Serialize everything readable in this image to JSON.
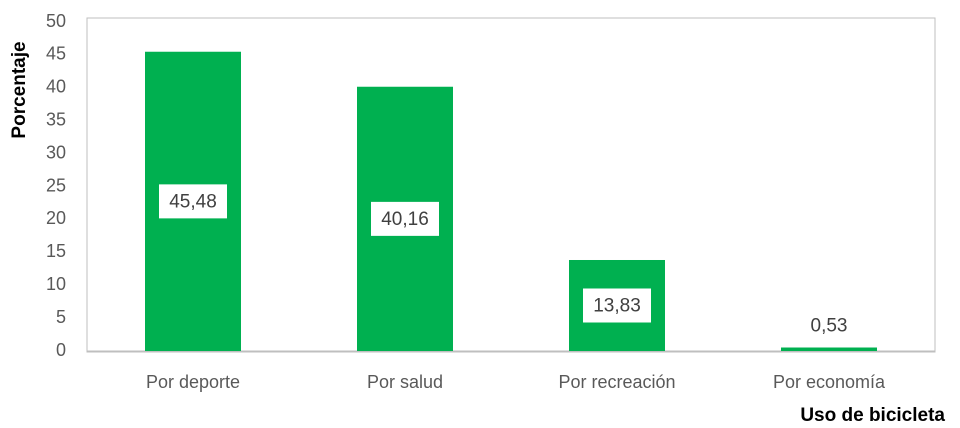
{
  "chart_data": {
    "type": "bar",
    "categories": [
      "Por deporte",
      "Por salud",
      "Por recreación",
      "Por economía"
    ],
    "values": [
      45.48,
      40.16,
      13.83,
      0.53
    ],
    "value_labels": [
      "45,48",
      "40,16",
      "13,83",
      "0,53"
    ],
    "color": "#00b050",
    "ylim": [
      0,
      50
    ],
    "yticks": [
      0,
      5,
      10,
      15,
      20,
      25,
      30,
      35,
      40,
      45,
      50
    ],
    "y_label": "Porcentaje",
    "x_label": "Uso de bicicleta",
    "grid": false
  }
}
